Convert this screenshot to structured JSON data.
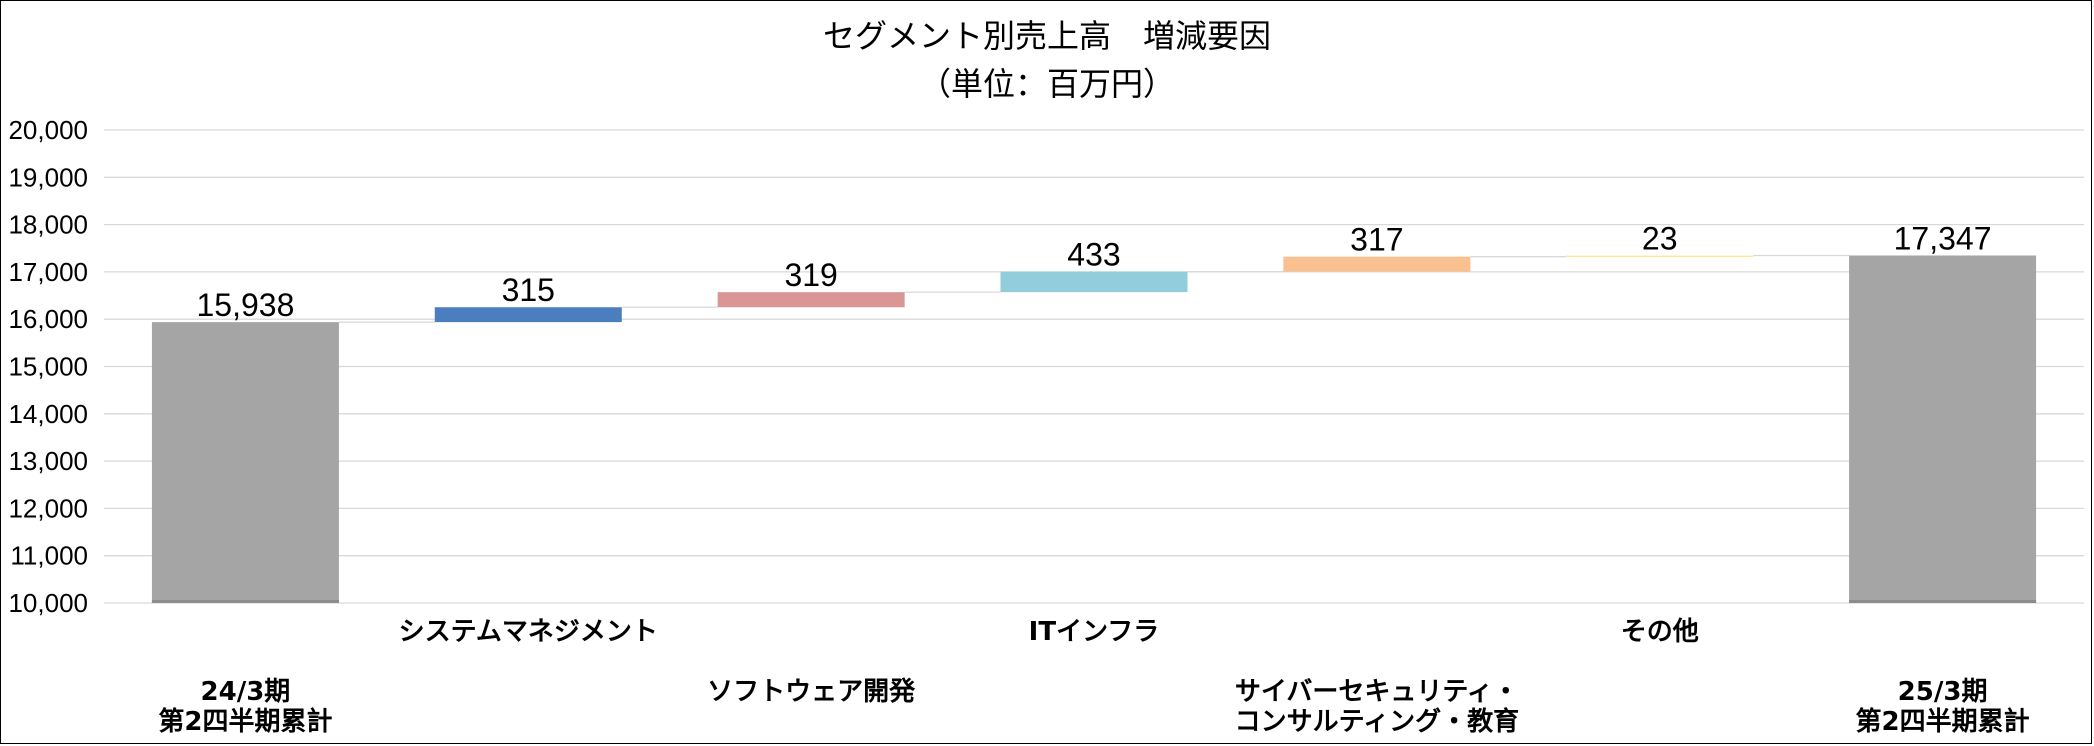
{
  "chart_data": {
    "type": "bar",
    "subtype": "waterfall",
    "title": "セグメント別売上高　増減要因",
    "subtitle": "（単位：百万円）",
    "categories": [
      [
        "24/3期",
        "第2四半期累計"
      ],
      [
        "システムマネジメント"
      ],
      [
        "ソフトウェア開発"
      ],
      [
        "ITインフラ"
      ],
      [
        "サイバーセキュリティ・",
        "コンサルティング・教育"
      ],
      [
        "その他"
      ],
      [
        "25/3期",
        "第2四半期累計"
      ]
    ],
    "category_rows": [
      2,
      0,
      1,
      0,
      1,
      0,
      2
    ],
    "values": [
      15938,
      315,
      319,
      433,
      317,
      23,
      17347
    ],
    "data_labels": [
      "15,938",
      "315",
      "319",
      "433",
      "317",
      "23",
      "17,347"
    ],
    "bar_kind": [
      "total",
      "delta",
      "delta",
      "delta",
      "delta",
      "delta",
      "total"
    ],
    "colors": [
      "#a5a5a5",
      "#4a7ebf",
      "#d99694",
      "#92cddc",
      "#fac08f",
      "#ffe699",
      "#a5a5a5"
    ],
    "ylim": [
      10000,
      20000
    ],
    "yticks": [
      10000,
      11000,
      12000,
      13000,
      14000,
      15000,
      16000,
      17000,
      18000,
      19000,
      20000
    ],
    "ytick_labels": [
      "10,000",
      "11,000",
      "12,000",
      "13,000",
      "14,000",
      "15,000",
      "16,000",
      "17,000",
      "18,000",
      "19,000",
      "20,000"
    ],
    "grid": true,
    "legend": "none"
  }
}
